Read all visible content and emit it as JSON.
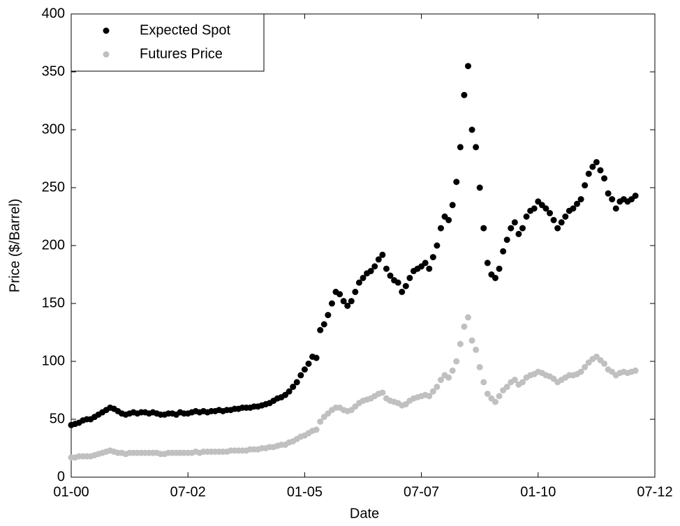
{
  "chart_data": {
    "type": "scatter",
    "x_label": "Date",
    "y_label": "Price ($/Barrel)",
    "x": [
      "2000-01",
      "2000-02",
      "2000-03",
      "2000-04",
      "2000-05",
      "2000-06",
      "2000-07",
      "2000-08",
      "2000-09",
      "2000-10",
      "2000-11",
      "2000-12",
      "2001-01",
      "2001-02",
      "2001-03",
      "2001-04",
      "2001-05",
      "2001-06",
      "2001-07",
      "2001-08",
      "2001-09",
      "2001-10",
      "2001-11",
      "2001-12",
      "2002-01",
      "2002-02",
      "2002-03",
      "2002-04",
      "2002-05",
      "2002-06",
      "2002-07",
      "2002-08",
      "2002-09",
      "2002-10",
      "2002-11",
      "2002-12",
      "2003-01",
      "2003-02",
      "2003-03",
      "2003-04",
      "2003-05",
      "2003-06",
      "2003-07",
      "2003-08",
      "2003-09",
      "2003-10",
      "2003-11",
      "2003-12",
      "2004-01",
      "2004-02",
      "2004-03",
      "2004-04",
      "2004-05",
      "2004-06",
      "2004-07",
      "2004-08",
      "2004-09",
      "2004-10",
      "2004-11",
      "2004-12",
      "2005-01",
      "2005-02",
      "2005-03",
      "2005-04",
      "2005-05",
      "2005-06",
      "2005-07",
      "2005-08",
      "2005-09",
      "2005-10",
      "2005-11",
      "2005-12",
      "2006-01",
      "2006-02",
      "2006-03",
      "2006-04",
      "2006-05",
      "2006-06",
      "2006-07",
      "2006-08",
      "2006-09",
      "2006-10",
      "2006-11",
      "2006-12",
      "2007-01",
      "2007-02",
      "2007-03",
      "2007-04",
      "2007-05",
      "2007-06",
      "2007-07",
      "2007-08",
      "2007-09",
      "2007-10",
      "2007-11",
      "2007-12",
      "2008-01",
      "2008-02",
      "2008-03",
      "2008-04",
      "2008-05",
      "2008-06",
      "2008-07",
      "2008-08",
      "2008-09",
      "2008-10",
      "2008-11",
      "2008-12",
      "2009-01",
      "2009-02",
      "2009-03",
      "2009-04",
      "2009-05",
      "2009-06",
      "2009-07",
      "2009-08",
      "2009-09",
      "2009-10",
      "2009-11",
      "2009-12",
      "2010-01",
      "2010-02",
      "2010-03",
      "2010-04",
      "2010-05",
      "2010-06",
      "2010-07",
      "2010-08",
      "2010-09",
      "2010-10",
      "2010-11",
      "2010-12",
      "2011-01",
      "2011-02",
      "2011-03",
      "2011-04",
      "2011-05",
      "2011-06",
      "2011-07",
      "2011-08",
      "2011-09",
      "2011-10",
      "2011-11",
      "2011-12",
      "2012-01",
      "2012-02"
    ],
    "series": [
      {
        "name": "Expected Spot",
        "color": "#000000",
        "values": [
          45,
          46,
          47,
          49,
          50,
          50,
          52,
          54,
          56,
          58,
          60,
          59,
          57,
          55,
          54,
          55,
          56,
          55,
          56,
          56,
          55,
          56,
          55,
          54,
          54,
          55,
          55,
          54,
          56,
          55,
          55,
          56,
          57,
          56,
          57,
          56,
          57,
          57,
          58,
          57,
          58,
          58,
          59,
          59,
          60,
          60,
          60,
          61,
          61,
          62,
          63,
          64,
          66,
          68,
          69,
          71,
          74,
          78,
          82,
          88,
          93,
          98,
          104,
          103,
          127,
          132,
          140,
          150,
          160,
          158,
          152,
          148,
          152,
          160,
          168,
          172,
          176,
          178,
          182,
          188,
          192,
          180,
          174,
          170,
          168,
          160,
          165,
          172,
          178,
          180,
          182,
          185,
          180,
          190,
          200,
          215,
          225,
          222,
          235,
          255,
          285,
          330,
          355,
          300,
          285,
          250,
          215,
          185,
          175,
          172,
          180,
          195,
          205,
          215,
          220,
          210,
          215,
          225,
          230,
          232,
          238,
          235,
          232,
          228,
          222,
          215,
          220,
          225,
          230,
          232,
          236,
          240,
          252,
          262,
          268,
          272,
          265,
          258,
          245,
          240,
          232,
          238,
          240,
          238,
          240,
          243
        ]
      },
      {
        "name": "Futures Price",
        "color": "#c0c0c0",
        "values": [
          17,
          17,
          18,
          18,
          18,
          18,
          19,
          20,
          21,
          22,
          23,
          22,
          21,
          21,
          20,
          21,
          21,
          21,
          21,
          21,
          21,
          21,
          21,
          20,
          20,
          21,
          21,
          21,
          21,
          21,
          21,
          21,
          22,
          21,
          22,
          22,
          22,
          22,
          22,
          22,
          22,
          23,
          23,
          23,
          23,
          23,
          24,
          24,
          24,
          25,
          25,
          26,
          26,
          27,
          28,
          28,
          30,
          31,
          33,
          35,
          36,
          38,
          40,
          41,
          48,
          52,
          55,
          58,
          60,
          60,
          58,
          57,
          58,
          61,
          64,
          66,
          67,
          68,
          70,
          72,
          73,
          68,
          66,
          65,
          64,
          62,
          63,
          66,
          68,
          69,
          70,
          71,
          70,
          74,
          78,
          84,
          88,
          86,
          92,
          100,
          115,
          130,
          138,
          118,
          110,
          95,
          82,
          72,
          68,
          65,
          70,
          75,
          78,
          82,
          84,
          80,
          82,
          86,
          88,
          89,
          91,
          90,
          88,
          87,
          85,
          82,
          84,
          86,
          88,
          88,
          89,
          91,
          95,
          99,
          102,
          104,
          101,
          98,
          93,
          91,
          88,
          90,
          91,
          90,
          91,
          92
        ]
      }
    ],
    "xlim": [
      "2000-01",
      "2012-07"
    ],
    "xticks": [
      {
        "value": "2000-01",
        "label": "01-00"
      },
      {
        "value": "2002-07",
        "label": "07-02"
      },
      {
        "value": "2005-01",
        "label": "01-05"
      },
      {
        "value": "2007-07",
        "label": "07-07"
      },
      {
        "value": "2010-01",
        "label": "01-10"
      },
      {
        "value": "2012-07",
        "label": "07-12"
      }
    ],
    "ylim": [
      0,
      400
    ],
    "yticks": [
      0,
      50,
      100,
      150,
      200,
      250,
      300,
      350,
      400
    ],
    "legend": "upper left"
  }
}
